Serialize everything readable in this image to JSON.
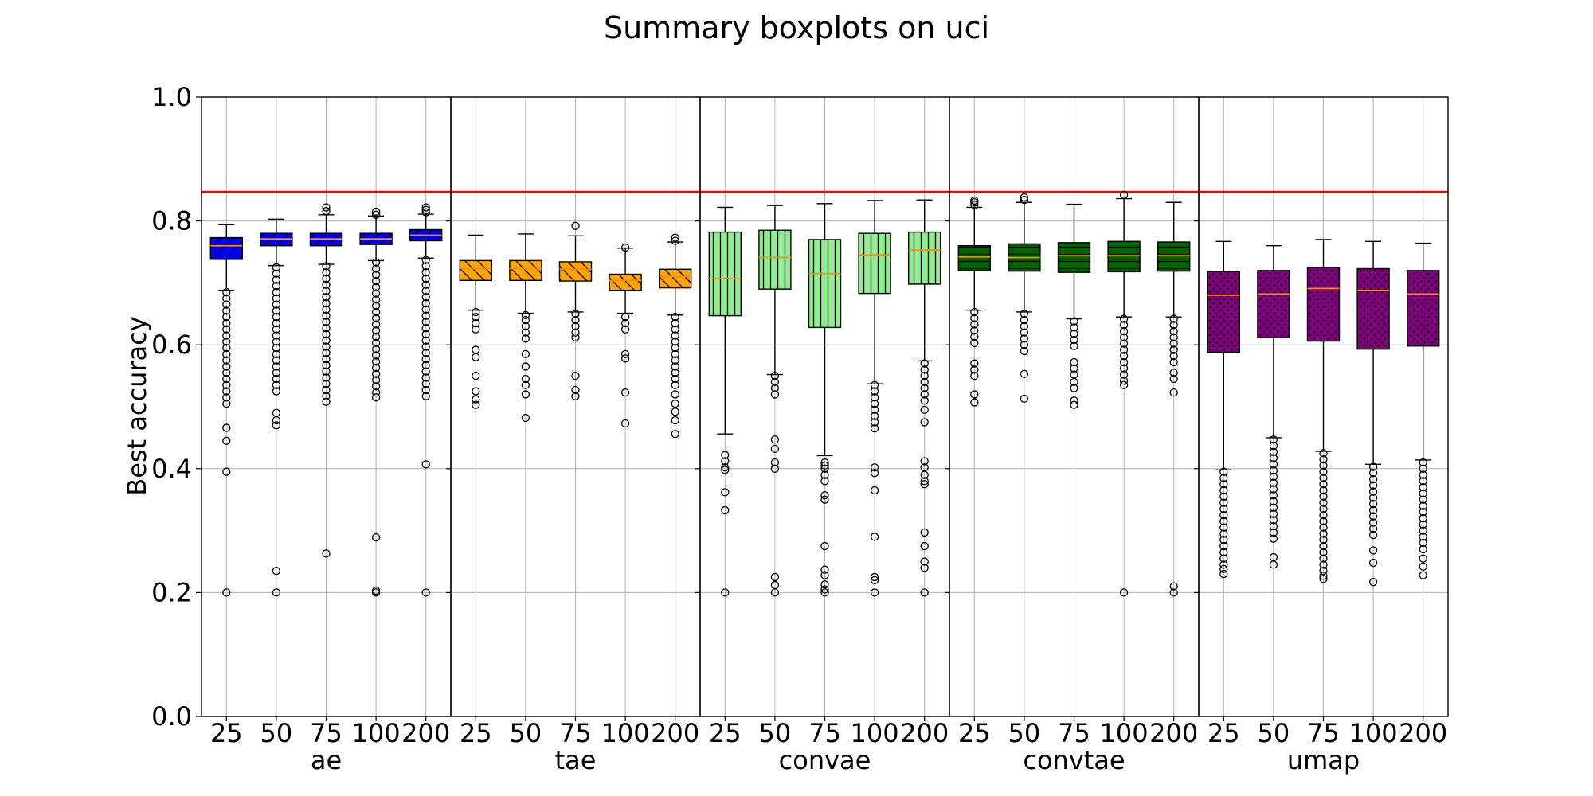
{
  "chart_data": {
    "type": "boxplot",
    "title": "Summary boxplots on uci",
    "ylabel": "Best accuracy",
    "ylim": [
      0.0,
      1.0
    ],
    "yticks": [
      "0.0",
      "0.2",
      "0.4",
      "0.6",
      "0.8",
      "1.0"
    ],
    "grid": true,
    "reference_line": {
      "value": 0.847,
      "color": "#ff0000"
    },
    "categories": [
      "25",
      "50",
      "75",
      "100",
      "200"
    ],
    "groups": [
      {
        "name": "ae",
        "color": "#0000ff",
        "hatch": "diagonal-up",
        "boxes": [
          {
            "q1": 0.738,
            "median": 0.76,
            "q3": 0.773,
            "whisker_low": 0.688,
            "whisker_high": 0.794,
            "outliers": [
              0.685,
              0.675,
              0.665,
              0.655,
              0.645,
              0.635,
              0.625,
              0.615,
              0.605,
              0.595,
              0.585,
              0.575,
              0.565,
              0.555,
              0.545,
              0.535,
              0.525,
              0.515,
              0.505,
              0.466,
              0.445,
              0.395,
              0.2
            ]
          },
          {
            "q1": 0.76,
            "median": 0.771,
            "q3": 0.78,
            "whisker_low": 0.728,
            "whisker_high": 0.803,
            "outliers": [
              0.725,
              0.715,
              0.705,
              0.695,
              0.685,
              0.675,
              0.665,
              0.655,
              0.645,
              0.635,
              0.625,
              0.615,
              0.605,
              0.595,
              0.585,
              0.575,
              0.565,
              0.555,
              0.545,
              0.535,
              0.525,
              0.49,
              0.478,
              0.47,
              0.235,
              0.2
            ]
          },
          {
            "q1": 0.76,
            "median": 0.771,
            "q3": 0.78,
            "whisker_low": 0.73,
            "whisker_high": 0.81,
            "outliers": [
              0.822,
              0.816,
              0.727,
              0.717,
              0.707,
              0.697,
              0.687,
              0.677,
              0.667,
              0.657,
              0.647,
              0.637,
              0.627,
              0.617,
              0.607,
              0.597,
              0.587,
              0.577,
              0.567,
              0.557,
              0.547,
              0.537,
              0.527,
              0.517,
              0.508,
              0.263
            ]
          },
          {
            "q1": 0.762,
            "median": 0.771,
            "q3": 0.78,
            "whisker_low": 0.736,
            "whisker_high": 0.808,
            "outliers": [
              0.815,
              0.81,
              0.733,
              0.723,
              0.713,
              0.703,
              0.693,
              0.683,
              0.673,
              0.663,
              0.653,
              0.643,
              0.633,
              0.623,
              0.613,
              0.603,
              0.593,
              0.583,
              0.573,
              0.563,
              0.553,
              0.543,
              0.533,
              0.523,
              0.515,
              0.289,
              0.203,
              0.2
            ]
          },
          {
            "q1": 0.768,
            "median": 0.777,
            "q3": 0.786,
            "whisker_low": 0.74,
            "whisker_high": 0.811,
            "outliers": [
              0.822,
              0.818,
              0.814,
              0.737,
              0.727,
              0.717,
              0.707,
              0.697,
              0.687,
              0.677,
              0.667,
              0.657,
              0.647,
              0.637,
              0.627,
              0.617,
              0.607,
              0.597,
              0.587,
              0.577,
              0.567,
              0.557,
              0.547,
              0.537,
              0.527,
              0.517,
              0.407,
              0.2
            ]
          }
        ]
      },
      {
        "name": "tae",
        "color": "#ffa500",
        "hatch": "diagonal-down",
        "boxes": [
          {
            "q1": 0.704,
            "median": 0.723,
            "q3": 0.736,
            "whisker_low": 0.656,
            "whisker_high": 0.777,
            "outliers": [
              0.653,
              0.645,
              0.635,
              0.625,
              0.592,
              0.58,
              0.55,
              0.525,
              0.512,
              0.503
            ]
          },
          {
            "q1": 0.704,
            "median": 0.723,
            "q3": 0.736,
            "whisker_low": 0.651,
            "whisker_high": 0.779,
            "outliers": [
              0.648,
              0.64,
              0.63,
              0.62,
              0.61,
              0.585,
              0.565,
              0.545,
              0.535,
              0.52,
              0.482
            ]
          },
          {
            "q1": 0.703,
            "median": 0.722,
            "q3": 0.734,
            "whisker_low": 0.653,
            "whisker_high": 0.776,
            "outliers": [
              0.792,
              0.65,
              0.64,
              0.63,
              0.62,
              0.612,
              0.55,
              0.527,
              0.517
            ]
          },
          {
            "q1": 0.688,
            "median": 0.704,
            "q3": 0.714,
            "whisker_low": 0.651,
            "whisker_high": 0.756,
            "outliers": [
              0.757,
              0.645,
              0.635,
              0.625,
              0.585,
              0.578,
              0.523,
              0.473
            ]
          },
          {
            "q1": 0.692,
            "median": 0.71,
            "q3": 0.722,
            "whisker_low": 0.648,
            "whisker_high": 0.766,
            "outliers": [
              0.773,
              0.768,
              0.645,
              0.635,
              0.625,
              0.615,
              0.605,
              0.595,
              0.585,
              0.575,
              0.565,
              0.555,
              0.545,
              0.535,
              0.52,
              0.505,
              0.492,
              0.478,
              0.456
            ]
          }
        ]
      },
      {
        "name": "convae",
        "color": "#90ee90",
        "hatch": "vertical",
        "boxes": [
          {
            "q1": 0.647,
            "median": 0.707,
            "q3": 0.782,
            "whisker_low": 0.456,
            "whisker_high": 0.822,
            "outliers": [
              0.422,
              0.412,
              0.402,
              0.398,
              0.362,
              0.333,
              0.2
            ]
          },
          {
            "q1": 0.69,
            "median": 0.741,
            "q3": 0.785,
            "whisker_low": 0.552,
            "whisker_high": 0.825,
            "outliers": [
              0.55,
              0.54,
              0.53,
              0.52,
              0.447,
              0.432,
              0.41,
              0.4,
              0.225,
              0.212,
              0.2
            ]
          },
          {
            "q1": 0.628,
            "median": 0.715,
            "q3": 0.77,
            "whisker_low": 0.421,
            "whisker_high": 0.828,
            "outliers": [
              0.41,
              0.405,
              0.4,
              0.39,
              0.38,
              0.357,
              0.35,
              0.275,
              0.237,
              0.228,
              0.213,
              0.205,
              0.2
            ]
          },
          {
            "q1": 0.683,
            "median": 0.745,
            "q3": 0.78,
            "whisker_low": 0.537,
            "whisker_high": 0.833,
            "outliers": [
              0.535,
              0.525,
              0.515,
              0.505,
              0.495,
              0.485,
              0.475,
              0.465,
              0.402,
              0.393,
              0.365,
              0.29,
              0.225,
              0.22,
              0.2
            ]
          },
          {
            "q1": 0.698,
            "median": 0.753,
            "q3": 0.782,
            "whisker_low": 0.574,
            "whisker_high": 0.834,
            "outliers": [
              0.57,
              0.56,
              0.55,
              0.54,
              0.53,
              0.52,
              0.51,
              0.495,
              0.475,
              0.412,
              0.402,
              0.39,
              0.38,
              0.375,
              0.297,
              0.275,
              0.25,
              0.24,
              0.2
            ]
          }
        ]
      },
      {
        "name": "convtae",
        "color": "#006400",
        "hatch": "horizontal",
        "boxes": [
          {
            "q1": 0.72,
            "median": 0.742,
            "q3": 0.76,
            "whisker_low": 0.656,
            "whisker_high": 0.822,
            "outliers": [
              0.833,
              0.83,
              0.826,
              0.653,
              0.643,
              0.633,
              0.623,
              0.613,
              0.603,
              0.57,
              0.56,
              0.55,
              0.52,
              0.507
            ]
          },
          {
            "q1": 0.719,
            "median": 0.741,
            "q3": 0.763,
            "whisker_low": 0.653,
            "whisker_high": 0.83,
            "outliers": [
              0.838,
              0.834,
              0.65,
              0.64,
              0.63,
              0.62,
              0.61,
              0.6,
              0.59,
              0.553,
              0.513
            ]
          },
          {
            "q1": 0.717,
            "median": 0.744,
            "q3": 0.765,
            "whisker_low": 0.642,
            "whisker_high": 0.827,
            "outliers": [
              0.638,
              0.628,
              0.618,
              0.608,
              0.598,
              0.572,
              0.562,
              0.552,
              0.54,
              0.53,
              0.51,
              0.503
            ]
          },
          {
            "q1": 0.718,
            "median": 0.744,
            "q3": 0.767,
            "whisker_low": 0.645,
            "whisker_high": 0.836,
            "outliers": [
              0.842,
              0.642,
              0.632,
              0.622,
              0.612,
              0.602,
              0.592,
              0.582,
              0.572,
              0.562,
              0.552,
              0.542,
              0.535,
              0.2
            ]
          },
          {
            "q1": 0.719,
            "median": 0.744,
            "q3": 0.766,
            "whisker_low": 0.645,
            "whisker_high": 0.83,
            "outliers": [
              0.642,
              0.632,
              0.622,
              0.612,
              0.602,
              0.592,
              0.582,
              0.572,
              0.555,
              0.545,
              0.523,
              0.21,
              0.2
            ]
          }
        ]
      },
      {
        "name": "umap",
        "color": "#800080",
        "hatch": "dots",
        "boxes": [
          {
            "q1": 0.588,
            "median": 0.68,
            "q3": 0.718,
            "whisker_low": 0.398,
            "whisker_high": 0.767,
            "outliers": [
              0.395,
              0.385,
              0.375,
              0.365,
              0.355,
              0.345,
              0.335,
              0.325,
              0.315,
              0.305,
              0.295,
              0.285,
              0.275,
              0.265,
              0.255,
              0.245,
              0.238,
              0.23
            ]
          },
          {
            "q1": 0.612,
            "median": 0.682,
            "q3": 0.72,
            "whisker_low": 0.45,
            "whisker_high": 0.76,
            "outliers": [
              0.447,
              0.437,
              0.427,
              0.417,
              0.407,
              0.397,
              0.387,
              0.377,
              0.367,
              0.357,
              0.347,
              0.337,
              0.327,
              0.317,
              0.307,
              0.297,
              0.287,
              0.257,
              0.245
            ]
          },
          {
            "q1": 0.606,
            "median": 0.691,
            "q3": 0.725,
            "whisker_low": 0.428,
            "whisker_high": 0.77,
            "outliers": [
              0.425,
              0.415,
              0.405,
              0.395,
              0.385,
              0.375,
              0.365,
              0.355,
              0.345,
              0.335,
              0.325,
              0.315,
              0.305,
              0.295,
              0.285,
              0.275,
              0.265,
              0.255,
              0.245,
              0.235,
              0.227,
              0.222
            ]
          },
          {
            "q1": 0.593,
            "median": 0.688,
            "q3": 0.723,
            "whisker_low": 0.407,
            "whisker_high": 0.767,
            "outliers": [
              0.403,
              0.393,
              0.383,
              0.373,
              0.363,
              0.353,
              0.343,
              0.333,
              0.323,
              0.313,
              0.303,
              0.293,
              0.268,
              0.248,
              0.217
            ]
          },
          {
            "q1": 0.598,
            "median": 0.682,
            "q3": 0.72,
            "whisker_low": 0.414,
            "whisker_high": 0.764,
            "outliers": [
              0.41,
              0.4,
              0.39,
              0.38,
              0.37,
              0.36,
              0.35,
              0.34,
              0.33,
              0.32,
              0.31,
              0.3,
              0.29,
              0.28,
              0.27,
              0.255,
              0.242,
              0.228
            ]
          }
        ]
      }
    ]
  }
}
